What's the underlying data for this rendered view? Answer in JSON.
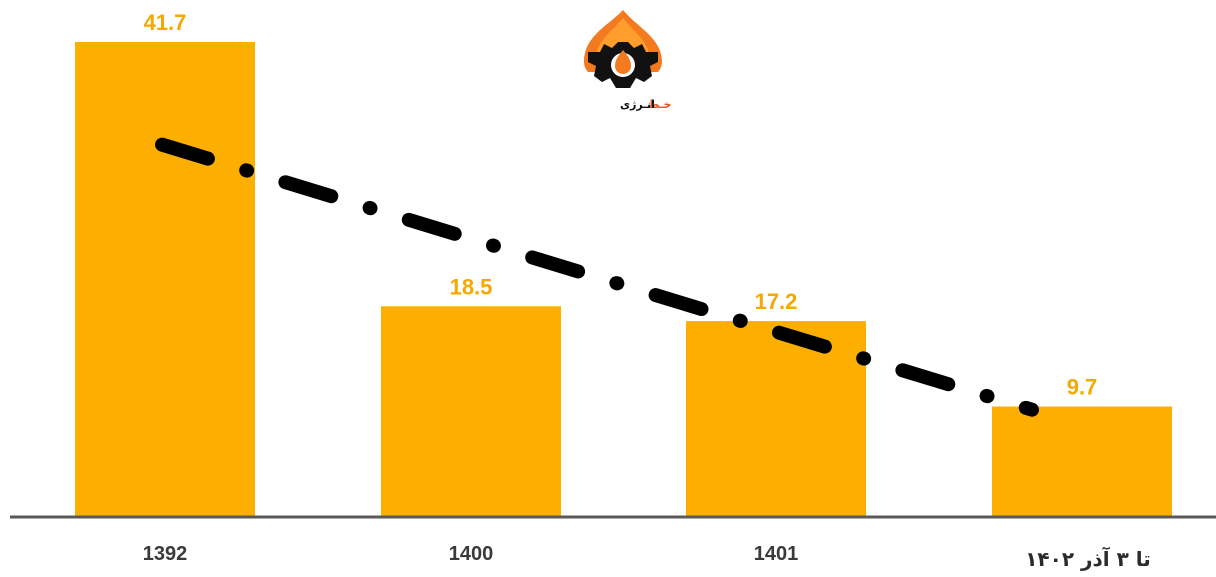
{
  "chart_data": {
    "type": "bar",
    "categories": [
      "1392",
      "1400",
      "1401",
      "تا ۳ آذر ۱۴۰۲"
    ],
    "values": [
      41.7,
      18.5,
      17.2,
      9.7
    ],
    "value_labels": [
      "41.7",
      "18.5",
      "17.2",
      "9.7"
    ],
    "title": "",
    "xlabel": "",
    "ylabel": "",
    "ylim": [
      0,
      41.7
    ],
    "grid": false,
    "legend": "none",
    "trendline": {
      "style": "dash-dot",
      "kind": "linear-trend",
      "color": "#000000"
    }
  },
  "colors": {
    "bar": "#FCAF00",
    "value_label": "#F5A800",
    "axis": "#595959",
    "tick_label": "#3a3a3a",
    "trendline": "#000000"
  },
  "logo": {
    "text_accent": "خـط",
    "text_main": "انـرژی",
    "icon": "flame-gear-icon"
  }
}
